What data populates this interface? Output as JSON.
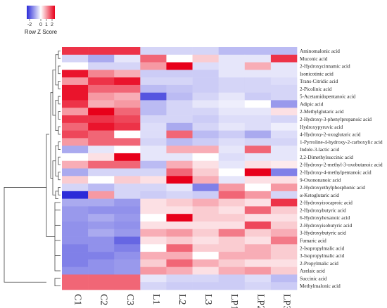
{
  "chart_data": {
    "type": "heatmap",
    "color_key": {
      "title": "Row Z Score",
      "ticks": [
        "-2",
        "0",
        "1",
        "2"
      ],
      "range": [
        -2.5,
        2.5
      ],
      "low_color": "#2b2bd8",
      "mid_color": "#ffffff",
      "high_color": "#e8001a"
    },
    "columns": [
      "C1",
      "C2",
      "C3",
      "L1",
      "L2",
      "L3",
      "LP1",
      "LP2",
      "LP3"
    ],
    "rows": [
      "Aminomalonic acid",
      "Muconic acid",
      "2-Hydroxycinnamic acid",
      "Isonicotinic acid",
      "Trans-Citridic acid",
      "2-Picolinic acid",
      "5-Acetamidopentanoic acid",
      "Adipic acid",
      "2-Methylglutaric acid",
      "2-Hydroxy-3-phenylpropanoic acid",
      "Hydroxypyruvic acid",
      "4-Hydroxy-2-oxoglutaric acid",
      "1-Pyrroline-4-hydroxy-2-carboxylic acid",
      "Indole-3-lactic acid",
      "2,2-Dimethylsuccinic acid",
      "2-Hydroxy-2-methyl-3-oxobutanoic acid",
      "2-Hydroxy-4-methylpentanoic acid",
      "9-Oxononanoic acid",
      "2-Hydroxyethylphosphonic acid",
      "α-Ketoglutaric acid",
      "2-Hydroxyisocaproic acid",
      "2-Hydroxybutyric acid",
      "6-Hydroxyhexanoic acid",
      "2-Hydroxyisobutyric acid",
      "3-Hydroxybutyric acid",
      "Fumaric acid",
      "2-Isopropylmalic acid",
      "3-Isopropylmalic acid",
      "2-Propylmalic acid",
      "Azelaic acid",
      "Succinic acid",
      "Methylmalonic acid"
    ],
    "values": [
      [
        2.0,
        2.0,
        2.0,
        -0.5,
        -0.5,
        -0.5,
        -0.8,
        -0.8,
        -0.8
      ],
      [
        -0.5,
        -1.0,
        -0.3,
        1.5,
        0.0,
        0.5,
        -0.3,
        -0.3,
        2.0
      ],
      [
        0.0,
        -0.5,
        -0.5,
        1.0,
        2.5,
        -0.4,
        -0.3,
        0.8,
        -0.3
      ],
      [
        2.3,
        1.2,
        0.8,
        -0.6,
        -0.6,
        -0.6,
        -0.3,
        -0.3,
        -0.3
      ],
      [
        1.0,
        2.0,
        2.3,
        -0.5,
        -0.5,
        -0.6,
        -0.5,
        -0.5,
        -0.4
      ],
      [
        2.3,
        1.5,
        1.5,
        -0.8,
        -0.7,
        -0.6,
        -0.5,
        -0.5,
        -0.5
      ],
      [
        2.3,
        1.0,
        0.8,
        -2.0,
        -0.8,
        -0.5,
        -0.3,
        -0.6,
        -0.5
      ],
      [
        2.0,
        0.8,
        1.0,
        -0.8,
        -0.5,
        -0.3,
        -0.2,
        0.0,
        -1.2
      ],
      [
        1.0,
        2.5,
        1.5,
        -0.8,
        -0.5,
        -0.5,
        -0.3,
        -0.3,
        0.3
      ],
      [
        2.0,
        2.0,
        1.8,
        -0.5,
        -0.5,
        -0.6,
        -0.4,
        -0.4,
        -0.5
      ],
      [
        1.5,
        2.3,
        2.0,
        -0.4,
        -1.0,
        -0.5,
        -0.3,
        -0.4,
        -0.2
      ],
      [
        1.8,
        1.5,
        0.0,
        -0.4,
        1.5,
        -0.8,
        -0.6,
        -1.0,
        -0.4
      ],
      [
        1.0,
        1.5,
        1.5,
        -0.5,
        -0.8,
        -0.6,
        -0.4,
        -0.5,
        -0.5
      ],
      [
        -1.0,
        -0.3,
        0.0,
        -0.3,
        0.8,
        0.8,
        -0.3,
        1.5,
        -0.3
      ],
      [
        0.0,
        0.3,
        2.5,
        -0.3,
        -0.3,
        0.0,
        -0.4,
        -0.3,
        -0.3
      ],
      [
        0.8,
        1.5,
        1.5,
        -0.8,
        0.8,
        0.3,
        -0.3,
        0.3,
        0.2
      ],
      [
        -1.0,
        -0.5,
        -0.5,
        -0.5,
        1.5,
        0.5,
        0.0,
        2.5,
        -1.5
      ],
      [
        0.5,
        0.0,
        0.5,
        0.3,
        2.5,
        0.8,
        -0.3,
        0.3,
        0.3
      ],
      [
        -0.5,
        -0.8,
        -0.5,
        -0.5,
        -0.3,
        -1.5,
        1.0,
        0.0,
        1.0
      ],
      [
        -2.5,
        1.0,
        -0.5,
        -0.6,
        -0.5,
        -0.6,
        1.5,
        1.0,
        -0.5
      ],
      [
        -1.0,
        -1.0,
        -1.2,
        0.3,
        0.5,
        0.8,
        0.5,
        0.3,
        2.0
      ],
      [
        -1.2,
        -1.3,
        -1.3,
        0.3,
        0.3,
        0.5,
        0.3,
        1.5,
        0.5
      ],
      [
        -1.2,
        -1.0,
        -1.2,
        0.0,
        2.5,
        0.5,
        0.5,
        0.3,
        0.3
      ],
      [
        -1.3,
        -1.2,
        -1.3,
        0.3,
        0.3,
        0.3,
        0.3,
        1.8,
        0.5
      ],
      [
        -1.3,
        -1.0,
        -1.2,
        0.8,
        1.0,
        0.5,
        1.3,
        0.5,
        0.8
      ],
      [
        -1.3,
        -1.3,
        -1.8,
        0.3,
        0.5,
        0.3,
        0.5,
        0.3,
        1.3
      ],
      [
        -1.5,
        -1.3,
        -1.5,
        0.0,
        1.5,
        0.5,
        0.5,
        0.8,
        0.5
      ],
      [
        -1.5,
        -1.5,
        -1.3,
        0.8,
        0.8,
        0.0,
        0.8,
        0.8,
        0.5
      ],
      [
        -1.5,
        -1.3,
        -1.2,
        0.5,
        1.5,
        0.8,
        0.5,
        0.3,
        0.3
      ],
      [
        -1.3,
        -1.3,
        -1.2,
        1.0,
        0.8,
        0.3,
        0.8,
        1.0,
        0.5
      ],
      [
        1.5,
        1.5,
        1.5,
        -0.3,
        -0.5,
        -0.5,
        -0.6,
        -0.4,
        -0.8
      ],
      [
        1.5,
        1.5,
        1.5,
        -0.5,
        -0.6,
        -0.6,
        -0.6,
        -0.5,
        -0.6
      ]
    ]
  }
}
